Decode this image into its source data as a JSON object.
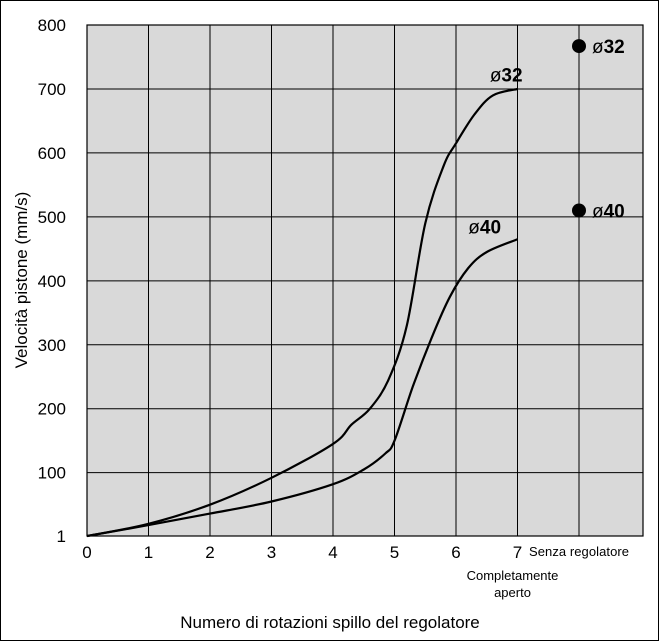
{
  "chart_data": {
    "type": "line",
    "xlabel": "Numero di rotazioni spillo del regolatore",
    "ylabel": "Velocità pistone (mm/s)",
    "xlim": [
      0,
      9
    ],
    "ylim": [
      1,
      800
    ],
    "grid": true,
    "background": "#d9d9d9",
    "x_ticks": [
      {
        "value": 0,
        "label": "0"
      },
      {
        "value": 1,
        "label": "1"
      },
      {
        "value": 2,
        "label": "2"
      },
      {
        "value": 3,
        "label": "3"
      },
      {
        "value": 4,
        "label": "4"
      },
      {
        "value": 5,
        "label": "5"
      },
      {
        "value": 6,
        "label": "6"
      },
      {
        "value": 7,
        "label": "7"
      },
      {
        "value": 8,
        "label": "Senza regolatore"
      }
    ],
    "y_ticks": [
      {
        "value": 800,
        "label": "800"
      },
      {
        "value": 700,
        "label": "700"
      },
      {
        "value": 600,
        "label": "600"
      },
      {
        "value": 500,
        "label": "500"
      },
      {
        "value": 400,
        "label": "400"
      },
      {
        "value": 300,
        "label": "300"
      },
      {
        "value": 200,
        "label": "200"
      },
      {
        "value": 100,
        "label": "100"
      },
      {
        "value": 1,
        "label": "1"
      }
    ],
    "x_annotation": {
      "x": 7,
      "lines": [
        "Completamente",
        "aperto"
      ]
    },
    "series": [
      {
        "name": "ø32",
        "label_prefix": "ø",
        "label_number": "32",
        "label_at": {
          "x": 6.55,
          "y": 712
        },
        "x": [
          0,
          1,
          2,
          3,
          4,
          4.3,
          4.6,
          4.9,
          5.2,
          5.5,
          5.8,
          6.0,
          6.3,
          6.6,
          7.0
        ],
        "y": [
          1,
          20,
          50,
          92,
          145,
          175,
          200,
          245,
          330,
          490,
          580,
          615,
          660,
          690,
          700
        ]
      },
      {
        "name": "ø40",
        "label_prefix": "ø",
        "label_number": "40",
        "label_at": {
          "x": 6.2,
          "y": 474
        },
        "x": [
          0,
          1,
          2,
          3,
          4,
          4.5,
          4.85,
          5.0,
          5.3,
          5.6,
          5.9,
          6.2,
          6.5,
          7.0
        ],
        "y": [
          1,
          18,
          36,
          55,
          82,
          105,
          130,
          150,
          235,
          310,
          375,
          420,
          445,
          465
        ]
      }
    ],
    "points": [
      {
        "name": "ø32",
        "label_prefix": "ø",
        "label_number": "32",
        "x": 8,
        "y": 767
      },
      {
        "name": "ø40",
        "label_prefix": "ø",
        "label_number": "40",
        "x": 8,
        "y": 510
      }
    ]
  }
}
